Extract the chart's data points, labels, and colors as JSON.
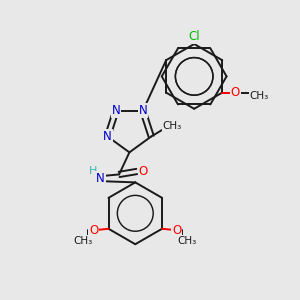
{
  "background_color": "#e8e8e8",
  "bond_color": "#1a1a1a",
  "n_color": "#0000cd",
  "o_color": "#ff0000",
  "cl_color": "#00bb00",
  "h_color": "#3cb4b4",
  "figsize": [
    3.0,
    3.0
  ],
  "dpi": 100,
  "xlim": [
    0,
    10
  ],
  "ylim": [
    0,
    10
  ]
}
